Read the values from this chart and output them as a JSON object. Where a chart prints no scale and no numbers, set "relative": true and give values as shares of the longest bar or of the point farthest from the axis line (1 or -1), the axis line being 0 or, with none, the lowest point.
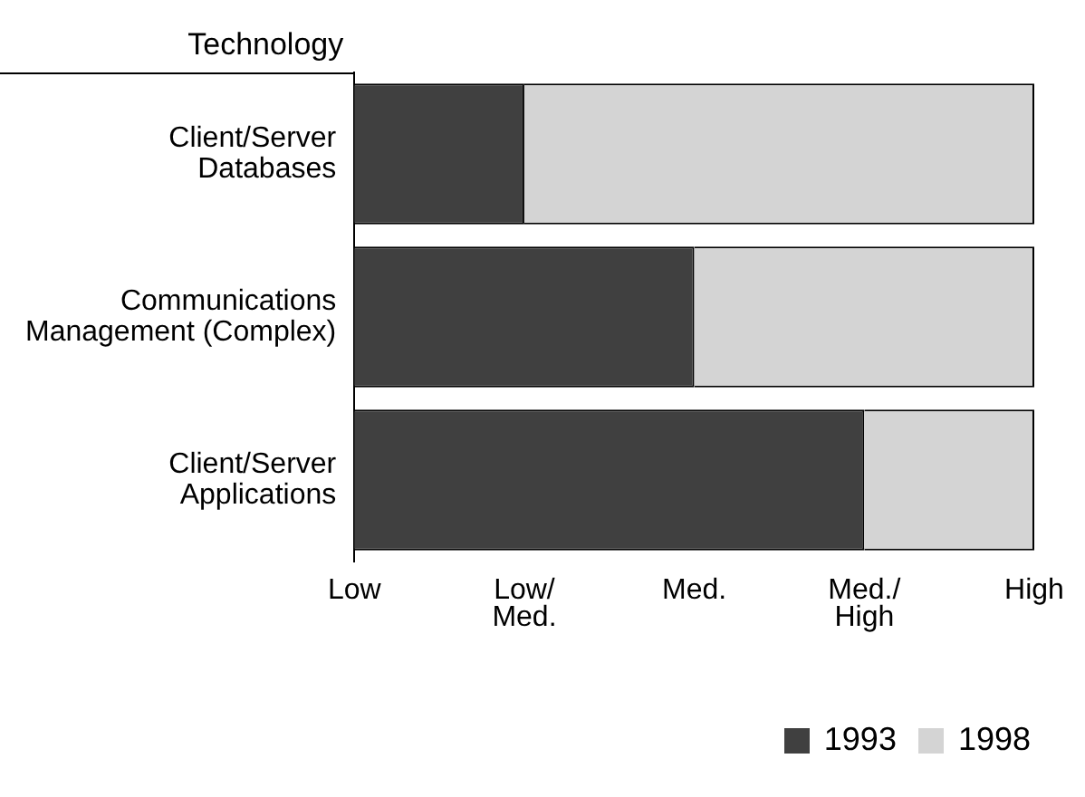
{
  "chart_data": {
    "type": "bar",
    "orientation": "horizontal",
    "stacked": true,
    "relative": true,
    "ylabel": "Technology",
    "categories": [
      "Client/Server\nDatabases",
      "Communications\nManagement (Complex)",
      "Client/Server\nApplications"
    ],
    "series": [
      {
        "name": "1993",
        "color": "#404040",
        "values": [
          0.25,
          0.5,
          0.75
        ]
      },
      {
        "name": "1998",
        "color": "#d4d4d4",
        "values": [
          0.75,
          0.5,
          0.25
        ]
      }
    ],
    "annotations": [
      "Low",
      "Low/\nMed.",
      "Med.",
      "Med./\nHigh",
      "High"
    ],
    "grid": false,
    "legend": "bottom right"
  }
}
